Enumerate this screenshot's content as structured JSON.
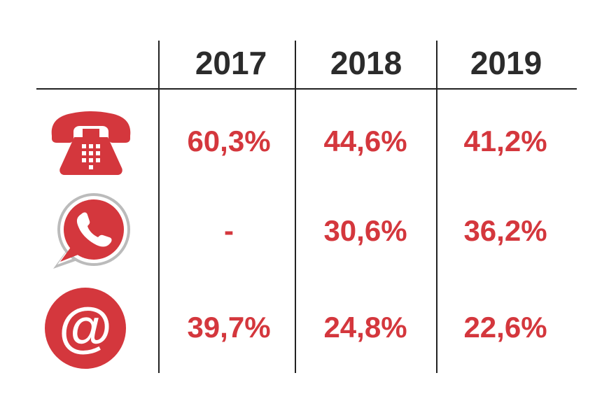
{
  "header": {
    "years": [
      "2017",
      "2018",
      "2019"
    ]
  },
  "rows": [
    {
      "icon": "telephone-icon",
      "values": [
        "60,3%",
        "44,6%",
        "41,2%"
      ]
    },
    {
      "icon": "whatsapp-icon",
      "values": [
        "-",
        "30,6%",
        "36,2%"
      ]
    },
    {
      "icon": "at-sign-icon",
      "values": [
        "39,7%",
        "24,8%",
        "22,6%"
      ]
    }
  ],
  "colors": {
    "accent": "#d4373d",
    "header_text": "#2b2b2b",
    "lines": "#222222"
  }
}
